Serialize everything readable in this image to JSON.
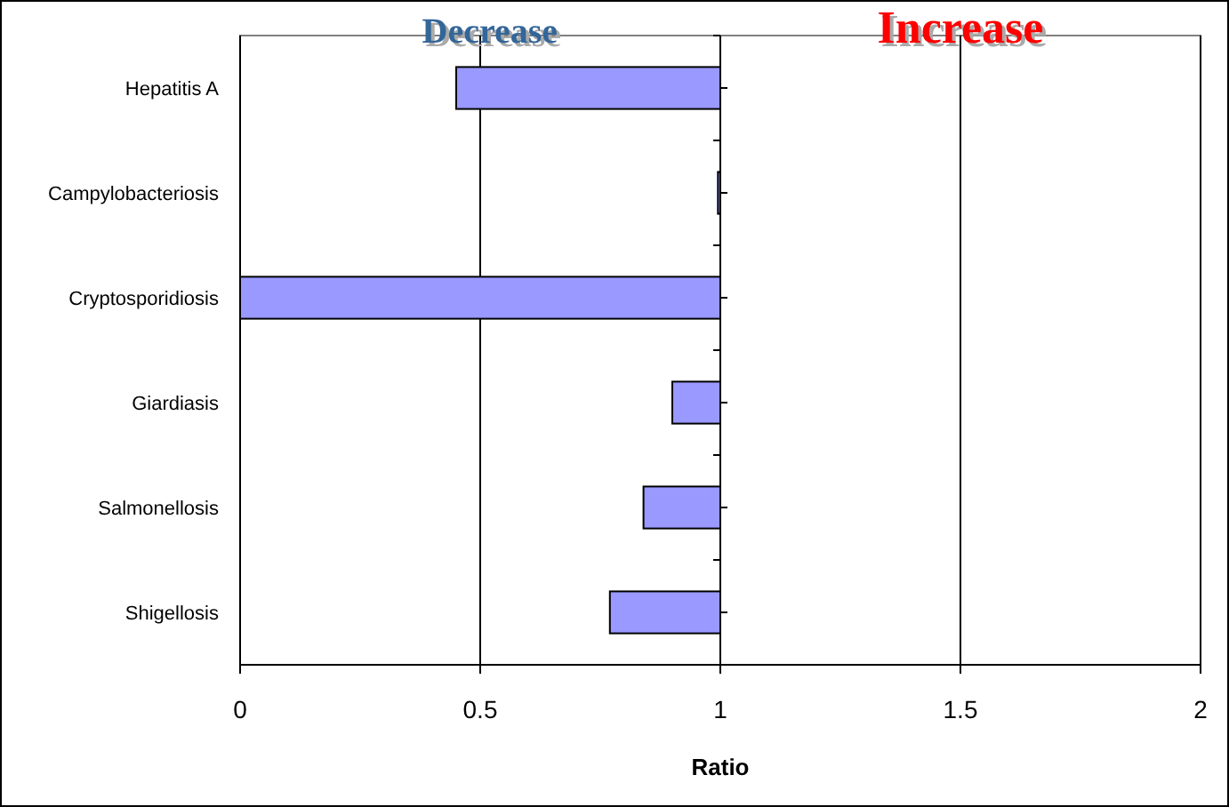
{
  "chart_data": {
    "type": "bar",
    "orientation": "horizontal",
    "categories": [
      "Hepatitis A",
      "Campylobacteriosis",
      "Cryptosporidiosis",
      "Giardiasis",
      "Salmonellosis",
      "Shigellosis"
    ],
    "base": [
      1,
      1,
      1,
      1,
      1,
      1
    ],
    "values": [
      -0.55,
      -0.005,
      -1,
      -0.1,
      -0.16,
      -0.23
    ],
    "color": "#9999ff",
    "xlabel": "Ratio",
    "xlim": [
      0,
      2
    ],
    "xticks": [
      0,
      0.5,
      1,
      1.5,
      2
    ],
    "grid": "x",
    "annotations": [
      "Decrease",
      "Increase"
    ]
  }
}
